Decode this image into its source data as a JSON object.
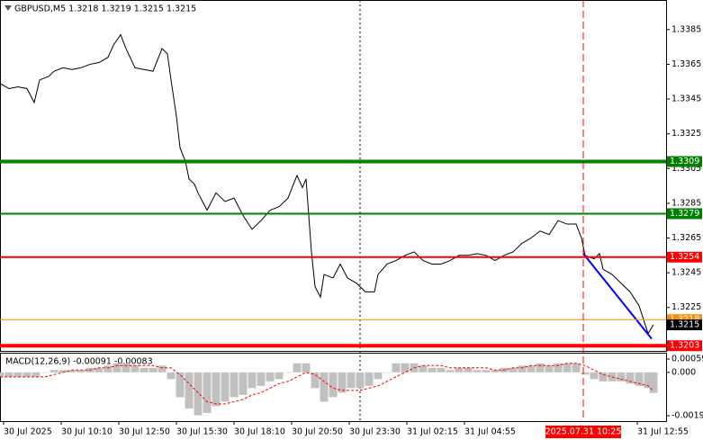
{
  "chart_data": [
    {
      "type": "line",
      "title": "GBPUSD,M5  1.3218 1.3219 1.3215 1.3215",
      "color": "#000000",
      "xlim": [
        0,
        370
      ],
      "ylim": [
        1.32,
        1.3402
      ],
      "yticks": [
        1.3385,
        1.3365,
        1.3345,
        1.3325,
        1.3305,
        1.3285,
        1.3265,
        1.3245,
        1.3225
      ],
      "x": [
        0,
        5,
        10,
        15,
        19,
        22,
        27,
        30,
        35,
        40,
        45,
        50,
        55,
        60,
        63,
        67,
        70,
        75,
        80,
        85,
        90,
        93,
        95,
        98,
        100,
        103,
        105,
        108,
        110,
        115,
        120,
        125,
        130,
        135,
        140,
        145,
        150,
        155,
        160,
        163,
        165,
        168,
        170,
        173,
        175,
        178,
        180,
        185,
        189,
        193,
        198,
        203,
        208,
        210,
        215,
        220,
        225,
        230,
        235,
        240,
        245,
        250,
        255,
        260,
        265,
        270,
        275,
        280,
        285,
        290,
        295,
        300,
        305,
        310,
        315,
        320,
        323,
        325,
        330,
        333,
        335,
        340,
        345,
        350,
        355,
        360,
        363
      ],
      "values": [
        1.3354,
        1.3351,
        1.3352,
        1.3351,
        1.3343,
        1.3356,
        1.3358,
        1.3361,
        1.3363,
        1.3362,
        1.3363,
        1.3365,
        1.3366,
        1.3369,
        1.3376,
        1.3382,
        1.3374,
        1.3363,
        1.3362,
        1.3361,
        1.3374,
        1.3371,
        1.3356,
        1.3335,
        1.3317,
        1.3309,
        1.3299,
        1.3296,
        1.3291,
        1.3281,
        1.3291,
        1.3286,
        1.3288,
        1.3278,
        1.327,
        1.3275,
        1.3281,
        1.3283,
        1.3288,
        1.3296,
        1.3301,
        1.3294,
        1.3299,
        1.3257,
        1.3237,
        1.3231,
        1.3244,
        1.3242,
        1.325,
        1.3242,
        1.3239,
        1.3234,
        1.3234,
        1.3244,
        1.325,
        1.3252,
        1.3255,
        1.3257,
        1.3252,
        1.325,
        1.325,
        1.3252,
        1.3255,
        1.3255,
        1.3256,
        1.3255,
        1.3252,
        1.3255,
        1.3257,
        1.3262,
        1.3265,
        1.3269,
        1.3267,
        1.3275,
        1.3273,
        1.3273,
        1.3265,
        1.3255,
        1.3253,
        1.3256,
        1.3247,
        1.3244,
        1.3239,
        1.3234,
        1.3226,
        1.321,
        1.3215
      ],
      "levels": [
        {
          "value": 1.3218,
          "color": "#ff8c00",
          "style": "thin"
        },
        {
          "value": 1.3309,
          "color": "#008000",
          "style": "thick"
        },
        {
          "value": 1.3279,
          "color": "#008000",
          "style": "medium"
        },
        {
          "value": 1.3254,
          "color": "#ff0000",
          "style": "medium"
        },
        {
          "value": 1.3203,
          "color": "#ff0000",
          "style": "thick"
        }
      ],
      "last_price": 1.3215,
      "trendline": {
        "x": [
          324,
          362
        ],
        "values": [
          1.3256,
          1.3207
        ],
        "color": "#0000ff"
      }
    },
    {
      "type": "bar",
      "title": "MACD(12,26,9) -0.00091 -0.00083",
      "xlim": [
        0,
        370
      ],
      "ylim": [
        -0.00216,
        0.00083
      ],
      "yticks": [
        0.00059,
        {
          "value": 0,
          "label": "0.000"
        },
        -0.00192
      ],
      "xticks": [
        {
          "value": 2,
          "label": "30 Jul 2025"
        },
        {
          "value": 34,
          "label": "30 Jul 10:10"
        },
        {
          "value": 66,
          "label": "30 Jul 12:50"
        },
        {
          "value": 98,
          "label": "30 Jul 15:30"
        },
        {
          "value": 130,
          "label": "30 Jul 18:10"
        },
        {
          "value": 162,
          "label": "30 Jul 20:50"
        },
        {
          "value": 194,
          "label": "30 Jul 23:30"
        },
        {
          "value": 226,
          "label": "31 Jul 02:15"
        },
        {
          "value": 258,
          "label": "31 Jul 04:55"
        },
        {
          "value": 354,
          "label": "31 Jul 12:55"
        }
      ],
      "cursor": {
        "value": 324,
        "label": "2025.07.31 10:25",
        "color": "#ff0000"
      },
      "x": [
        0,
        5,
        10,
        15,
        20,
        25,
        30,
        35,
        40,
        45,
        50,
        55,
        60,
        65,
        70,
        75,
        80,
        85,
        90,
        95,
        100,
        105,
        110,
        115,
        120,
        125,
        130,
        135,
        140,
        145,
        150,
        155,
        160,
        165,
        170,
        175,
        180,
        185,
        190,
        195,
        200,
        205,
        210,
        215,
        220,
        225,
        230,
        235,
        240,
        245,
        250,
        255,
        260,
        265,
        270,
        275,
        280,
        285,
        290,
        295,
        300,
        305,
        310,
        315,
        320,
        325,
        330,
        335,
        340,
        345,
        350,
        355,
        360,
        363
      ],
      "series": [
        {
          "style": "histogram",
          "color": "#c0c0c0",
          "values": [
            -0.0002,
            -0.0002,
            -0.0002,
            -0.0002,
            -0.0002,
            0,
            0.0001,
            0.0001,
            0.0001,
            0.0001,
            0.0002,
            0.0002,
            0.0003,
            0.0004,
            0.0004,
            0.0003,
            0.0002,
            0.0002,
            0.0003,
            -0.0003,
            -0.0011,
            -0.0016,
            -0.0019,
            -0.0018,
            -0.0015,
            -0.0013,
            -0.0011,
            -0.001,
            -0.0007,
            -0.0006,
            -0.0004,
            -0.0003,
            0,
            0.0004,
            0.0004,
            -0.0007,
            -0.0013,
            -0.0011,
            -0.0009,
            -0.0007,
            -0.0007,
            -0.0006,
            -0.0003,
            0,
            0.0004,
            0.0004,
            0.0004,
            0.0003,
            0.0002,
            0.0002,
            0.0001,
            0.0002,
            0.0002,
            0.0001,
            0.0001,
            0.0001,
            0.0002,
            0.0002,
            0.0003,
            0.0003,
            0.0004,
            0.0003,
            0.0004,
            0.0004,
            0.0004,
            -0.0001,
            -0.0003,
            -0.0004,
            -0.0004,
            -0.0004,
            -0.0005,
            -0.0006,
            -0.0007,
            -0.00091
          ]
        },
        {
          "style": "dashed",
          "color": "#ff0000",
          "values": [
            -0.0002,
            -0.0002,
            -0.0002,
            -0.0002,
            -0.0002,
            -0.0002,
            -0.0001,
            0,
            0.0001,
            0.0001,
            0.0001,
            0.0002,
            0.0002,
            0.0003,
            0.0003,
            0.0003,
            0.0003,
            0.0003,
            0.0002,
            0.0002,
            -0.0001,
            -0.0005,
            -0.0009,
            -0.0013,
            -0.0014,
            -0.0014,
            -0.0013,
            -0.0012,
            -0.001,
            -0.0009,
            -0.0007,
            -0.0005,
            -0.0004,
            -0.0002,
            0,
            -0.0001,
            -0.0004,
            -0.0007,
            -0.0008,
            -0.0008,
            -0.0008,
            -0.0007,
            -0.0006,
            -0.0004,
            -0.0002,
            0,
            0.0002,
            0.0003,
            0.0003,
            0.0003,
            0.0002,
            0.0002,
            0.0002,
            0.0002,
            0.0002,
            0.0001,
            0.0001,
            0.0002,
            0.0002,
            0.0003,
            0.0003,
            0.0003,
            0.0003,
            0.0004,
            0.0004,
            0.0003,
            0.0001,
            -0.0001,
            -0.0002,
            -0.0003,
            -0.0004,
            -0.0005,
            -0.0006,
            -0.00083
          ]
        }
      ]
    }
  ]
}
